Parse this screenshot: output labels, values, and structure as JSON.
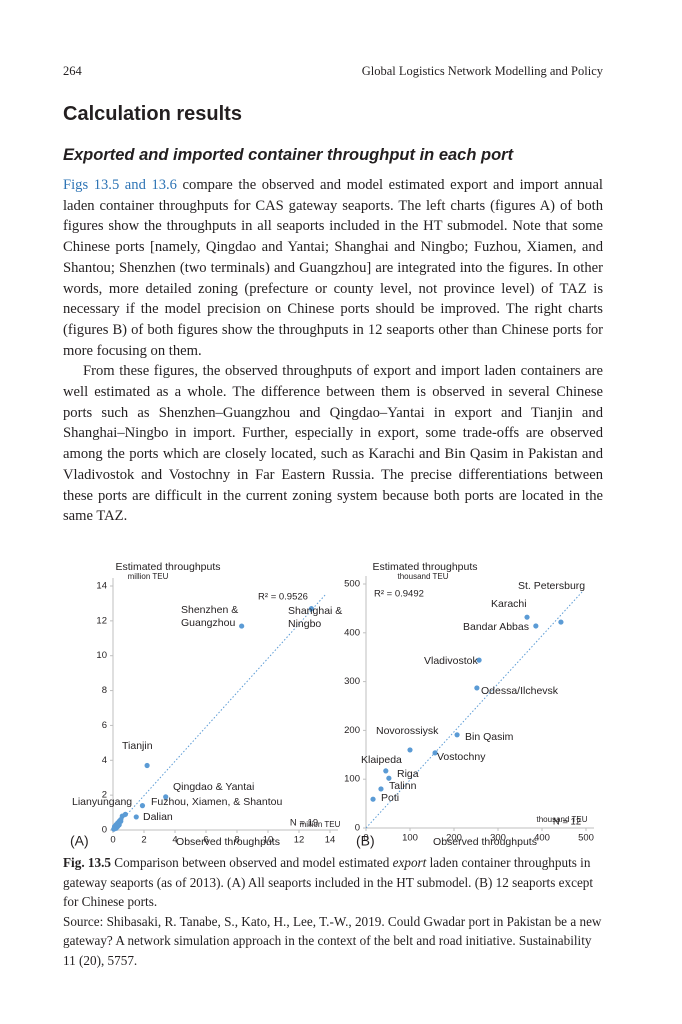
{
  "header": {
    "page_number": "264",
    "running_title": "Global Logistics Network Modelling and Policy"
  },
  "section_title": "Calculation results",
  "subsection_title": "Exported and imported container throughput in each port",
  "paragraphs": [
    {
      "link": "Figs 13.5 and 13.6",
      "text": " compare the observed and model estimated export and import annual laden container throughputs for CAS gateway seaports. The left charts (figures A) of both figures show the throughputs in all seaports included in the HT submodel. Note that some Chinese ports [namely, Qingdao and Yantai; Shanghai and Ningbo; Fuzhou, Xiamen, and Shantou; Shenzhen (two terminals) and Guangzhou] are integrated into the figures. In other words, more detailed zoning (prefecture or county level, not province level) of TAZ is necessary if the model precision on Chinese ports should be improved. The right charts (figures B) of both figures show the throughputs in 12 seaports other than Chinese ports for more focusing on them."
    },
    {
      "text": "From these figures, the observed throughputs of export and import laden containers are well estimated as a whole. The difference between them is observed in several Chinese ports such as Shenzhen–Guangzhou and Qingdao–Yantai in export and Tianjin and Shanghai–Ningbo in import. Further, especially in export, some trade-offs are observed among the ports which are closely located, such as Karachi and Bin Qasim in Pakistan and Vladivostok and Vostochny in Far Eastern Russia. The precise differentiations between these ports are difficult in the current zoning system because both ports are located in the same TAZ."
    }
  ],
  "caption": {
    "label": "Fig. 13.5",
    "text_before": " Comparison between observed and model estimated ",
    "emphasis": "export",
    "text_after": " laden container throughputs in gateway seaports (as of 2013). (A) All seaports included in the HT submodel. (B) 12 seaports except for Chinese ports."
  },
  "source": "Source: Shibasaki, R. Tanabe, S., Kato, H., Lee, T.-W., 2019. Could Gwadar port in Pakistan be a new gateway? A network simulation approach in the context of the belt and road initiative. Sustainability 11 (20), 5757.",
  "chart_data": [
    {
      "type": "scatter",
      "panel": "(A)",
      "y_label": "Estimated throughputs",
      "y_unit": "million TEU",
      "x_label": "Observed throughputs",
      "x_unit": "million TEU",
      "r2": "R² = 0.9526",
      "n": "N = 19",
      "color": "#5b9bd5",
      "point_labels": [
        "Shenzhen & Guangzhou",
        "Shanghai & Ningbo",
        "Tianjin",
        "Qingdao & Yantai",
        "Fuzhou, Xiamen, & Shantou",
        "Dalian",
        "Lianyungang",
        null,
        null,
        null,
        null,
        null,
        null,
        null,
        null,
        null,
        null,
        null,
        null
      ],
      "x": [
        8.3,
        12.8,
        2.2,
        3.4,
        1.9,
        1.5,
        0.5,
        0.2,
        0.3,
        0.1,
        0.4,
        0.6,
        0.3,
        0.1,
        0.2,
        0.5,
        0.8,
        0.4,
        0.05
      ],
      "values": [
        11.7,
        12.7,
        3.7,
        1.9,
        1.4,
        0.75,
        0.5,
        0.1,
        0.4,
        0.2,
        0.3,
        0.8,
        0.2,
        0.1,
        0.3,
        0.6,
        0.9,
        0.5,
        0.05
      ],
      "xlim": [
        0,
        14
      ],
      "ylim": [
        0,
        14
      ],
      "xticks": [
        0,
        2,
        4,
        6,
        8,
        10,
        12,
        14
      ],
      "yticks": [
        0,
        2,
        4,
        6,
        8,
        10,
        12,
        14
      ]
    },
    {
      "type": "scatter",
      "panel": "(B)",
      "y_label": "Estimated throughputs",
      "y_unit": "thousand TEU",
      "x_label": "Observed throughputs",
      "x_unit": "thousand TEU",
      "r2": "R² = 0.9492",
      "n": "N = 12",
      "color": "#5b9bd5",
      "point_labels": [
        "St. Petersburg",
        "Karachi",
        "Bandar Abbas",
        "Vladivostok",
        "Odessa/Ilchevsk",
        "Novorossiysk",
        "Bin Qasim",
        "Vostochny",
        "Klaipeda",
        "Riga",
        "Talinn",
        "Poti"
      ],
      "x": [
        443,
        366,
        386,
        257,
        252,
        100,
        207,
        157,
        45,
        52,
        34,
        16
      ],
      "values": [
        422,
        432,
        414,
        344,
        287,
        160,
        191,
        154,
        117,
        102,
        80,
        59
      ],
      "xlim": [
        0,
        500
      ],
      "ylim": [
        0,
        500
      ],
      "xticks": [
        0,
        100,
        200,
        300,
        400,
        500
      ],
      "yticks": [
        0,
        100,
        200,
        300,
        400,
        500
      ]
    }
  ]
}
